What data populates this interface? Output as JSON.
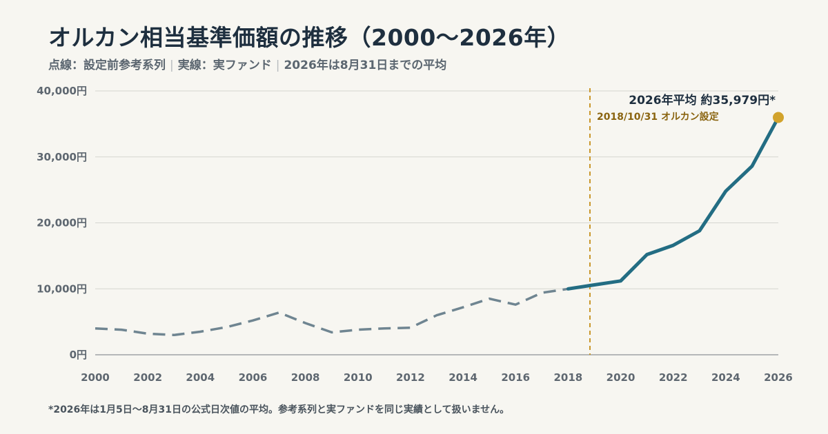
{
  "title": "オルカン相当基準価額の推移（2000〜2026年）",
  "subtitle": {
    "part1": "点線：設定前参考系列",
    "separator": "|",
    "part2": "実線：実ファンド",
    "part3": "2026年は8月31日までの平均"
  },
  "footnote": "*2026年は1月5日〜8月31日の公式日次値の平均。参考系列と実ファンドを同じ実績として扱いません。",
  "colors": {
    "reference_series": "#6f8591",
    "actual_series": "#236d83",
    "event_line": "#c9962a",
    "endpoint_dot": "#d2a32c",
    "grid": "#d5d5d0",
    "baseline": "#9ea2a5"
  },
  "chart_data": {
    "type": "line",
    "title": "オルカン相当基準価額の推移（2000〜2026年）",
    "xlabel": "",
    "ylabel": "",
    "xlim": [
      2000,
      2026
    ],
    "ylim": [
      0,
      40000
    ],
    "grid": true,
    "x_ticks": [
      2000,
      2002,
      2004,
      2006,
      2008,
      2010,
      2012,
      2014,
      2016,
      2018,
      2020,
      2022,
      2024,
      2026
    ],
    "y_ticks": [
      {
        "value": 0,
        "label": "0円"
      },
      {
        "value": 10000,
        "label": "10,000円"
      },
      {
        "value": 20000,
        "label": "20,000円"
      },
      {
        "value": 30000,
        "label": "30,000円"
      },
      {
        "value": 40000,
        "label": "40,000円"
      }
    ],
    "series": [
      {
        "style": "dashed",
        "x": [
          2000,
          2001,
          2002,
          2003,
          2004,
          2005,
          2006,
          2007,
          2008,
          2009,
          2010,
          2011,
          2012,
          2013,
          2014,
          2015,
          2016,
          2017,
          2018
        ],
        "y": [
          4000,
          3800,
          3200,
          3000,
          3500,
          4200,
          5200,
          6400,
          4800,
          3400,
          3800,
          4000,
          4100,
          6000,
          7200,
          8500,
          7600,
          9400,
          10000
        ]
      },
      {
        "style": "solid",
        "x": [
          2018,
          2019,
          2020,
          2021,
          2022,
          2023,
          2024,
          2025,
          2026
        ],
        "y": [
          10000,
          10600,
          11200,
          15200,
          16600,
          18800,
          24800,
          28600,
          35979
        ]
      }
    ],
    "annotations": {
      "event_year": 2018.83,
      "event_label": "2018/10/31 オルカン設定",
      "endpoint_label": "2026年平均 約35,979円*"
    }
  }
}
